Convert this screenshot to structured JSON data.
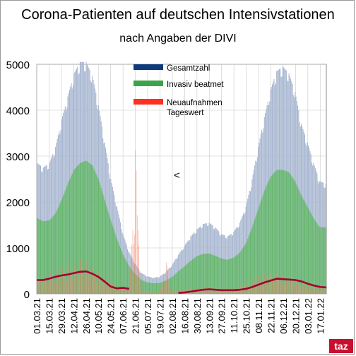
{
  "header": {
    "title": "Corona-Patienten auf deutschen Intensivstationen",
    "subtitle": "nach Angaben der DIVI"
  },
  "logo_text": "taz",
  "annotation_mark": "<",
  "colors": {
    "gesamt": "#a7b6d0",
    "invasiv": "#65b76c",
    "neu_bars": "#f07a58",
    "neu_avg": "#a3002f",
    "legend_gesamt": "#0f3a7a",
    "legend_invasiv": "#3da34a",
    "legend_neu": "#ff3020",
    "grid": "#c8c8c8",
    "logo": "#c8102e"
  },
  "chart_data": {
    "type": "bar",
    "title": "Corona-Patienten auf deutschen Intensivstationen",
    "subtitle": "nach Angaben der DIVI",
    "ylim": [
      0,
      5000
    ],
    "y_ticks": [
      0,
      1000,
      2000,
      3000,
      4000,
      5000
    ],
    "y_tick_labels": [
      "0",
      "1000",
      "2000",
      "3000",
      "4000",
      "5000"
    ],
    "grid": true,
    "legend_position": "top-center",
    "x_tick_labels": [
      "01.03.21",
      "15.03.21",
      "29.03.21",
      "12.04.21",
      "26.04.21",
      "10.05.21",
      "24.05.21",
      "07.06.21",
      "21.06.21",
      "05.07.21",
      "19.07.21",
      "02.08.21",
      "16.08.21",
      "30.08.21",
      "13.09.21",
      "27.09.21",
      "11.10.21",
      "25.10.21",
      "08.11.21",
      "22.11.21",
      "06.12.21",
      "20.12.21",
      "03.01.22",
      "17.01.22"
    ],
    "legend": [
      {
        "label": "Gesamtzahl",
        "color_key": "legend_gesamt"
      },
      {
        "label": "Invasiv beatmet",
        "color_key": "legend_invasiv"
      },
      {
        "label": "Neuaufnahmen\nTageswert",
        "color_key": "legend_neu"
      }
    ],
    "series": [
      {
        "name": "Gesamtzahl",
        "x": [
          "01.03.21",
          "08.03.21",
          "15.03.21",
          "22.03.21",
          "29.03.21",
          "05.04.21",
          "12.04.21",
          "19.04.21",
          "26.04.21",
          "03.05.21",
          "10.05.21",
          "17.05.21",
          "24.05.21",
          "31.05.21",
          "07.06.21",
          "14.06.21",
          "21.06.21",
          "28.06.21",
          "05.07.21",
          "12.07.21",
          "19.07.21",
          "26.07.21",
          "02.08.21",
          "09.08.21",
          "16.08.21",
          "23.08.21",
          "30.08.21",
          "06.09.21",
          "13.09.21",
          "20.09.21",
          "27.09.21",
          "04.10.21",
          "11.10.21",
          "18.10.21",
          "25.10.21",
          "01.11.21",
          "08.11.21",
          "15.11.21",
          "22.11.21",
          "29.11.21",
          "06.12.21",
          "13.12.21",
          "20.12.21",
          "27.12.21",
          "03.01.22",
          "10.01.22",
          "17.01.22",
          "24.01.22"
        ],
        "values": [
          2850,
          2750,
          2850,
          3200,
          3800,
          4300,
          4800,
          5050,
          5050,
          4750,
          4100,
          3300,
          2500,
          1900,
          1300,
          900,
          650,
          450,
          380,
          350,
          380,
          480,
          640,
          850,
          1050,
          1250,
          1400,
          1520,
          1550,
          1450,
          1300,
          1250,
          1350,
          1550,
          1900,
          2500,
          3200,
          3850,
          4450,
          4850,
          4950,
          4800,
          4400,
          3700,
          3300,
          2850,
          2450,
          2400
        ]
      },
      {
        "name": "Invasiv beatmet",
        "x": [
          "01.03.21",
          "08.03.21",
          "15.03.21",
          "22.03.21",
          "29.03.21",
          "05.04.21",
          "12.04.21",
          "19.04.21",
          "26.04.21",
          "03.05.21",
          "10.05.21",
          "17.05.21",
          "24.05.21",
          "31.05.21",
          "07.06.21",
          "14.06.21",
          "21.06.21",
          "28.06.21",
          "05.07.21",
          "12.07.21",
          "19.07.21",
          "26.07.21",
          "02.08.21",
          "09.08.21",
          "16.08.21",
          "23.08.21",
          "30.08.21",
          "06.09.21",
          "13.09.21",
          "20.09.21",
          "27.09.21",
          "04.10.21",
          "11.10.21",
          "18.10.21",
          "25.10.21",
          "01.11.21",
          "08.11.21",
          "15.11.21",
          "22.11.21",
          "29.11.21",
          "06.12.21",
          "13.12.21",
          "20.12.21",
          "27.12.21",
          "03.01.22",
          "10.01.22",
          "17.01.22",
          "24.01.22"
        ],
        "values": [
          1650,
          1580,
          1600,
          1750,
          2050,
          2400,
          2700,
          2850,
          2900,
          2800,
          2500,
          2050,
          1600,
          1200,
          850,
          600,
          430,
          300,
          250,
          230,
          240,
          290,
          370,
          490,
          600,
          720,
          820,
          870,
          880,
          830,
          770,
          740,
          790,
          900,
          1100,
          1450,
          1850,
          2250,
          2550,
          2700,
          2700,
          2650,
          2450,
          2150,
          1900,
          1650,
          1450,
          1450
        ]
      },
      {
        "name": "Neuaufnahmen Tageswert",
        "x": [
          "01.03.21",
          "08.03.21",
          "15.03.21",
          "22.03.21",
          "29.03.21",
          "05.04.21",
          "12.04.21",
          "19.04.21",
          "26.04.21",
          "03.05.21",
          "10.05.21",
          "17.05.21",
          "24.05.21",
          "31.05.21",
          "07.06.21",
          "14.06.21",
          "21.06.21",
          "28.06.21",
          "05.07.21",
          "12.07.21",
          "19.07.21",
          "26.07.21",
          "02.08.21",
          "09.08.21",
          "16.08.21",
          "23.08.21",
          "30.08.21",
          "06.09.21",
          "13.09.21",
          "20.09.21",
          "27.09.21",
          "04.10.21",
          "11.10.21",
          "18.10.21",
          "25.10.21",
          "01.11.21",
          "08.11.21",
          "15.11.21",
          "22.11.21",
          "29.11.21",
          "06.12.21",
          "13.12.21",
          "20.12.21",
          "27.12.21",
          "03.01.22",
          "10.01.22",
          "17.01.22",
          "24.01.22"
        ],
        "values": [
          330,
          300,
          360,
          420,
          460,
          470,
          520,
          600,
          560,
          470,
          400,
          300,
          230,
          160,
          120,
          90,
          2500,
          60,
          40,
          40,
          40,
          550,
          60,
          80,
          90,
          110,
          120,
          130,
          130,
          110,
          90,
          90,
          110,
          140,
          180,
          250,
          320,
          360,
          380,
          350,
          320,
          300,
          280,
          230,
          200,
          180,
          160,
          150
        ]
      },
      {
        "name": "Neuaufnahmen gleitender Durchschnitt",
        "x": [
          "01.03.21",
          "08.03.21",
          "15.03.21",
          "22.03.21",
          "29.03.21",
          "05.04.21",
          "12.04.21",
          "19.04.21",
          "26.04.21",
          "03.05.21",
          "10.05.21",
          "17.05.21",
          "24.05.21",
          "31.05.21",
          "07.06.21",
          "14.06.21",
          "09.08.21",
          "16.08.21",
          "23.08.21",
          "30.08.21",
          "06.09.21",
          "13.09.21",
          "20.09.21",
          "27.09.21",
          "04.10.21",
          "11.10.21",
          "18.10.21",
          "25.10.21",
          "01.11.21",
          "08.11.21",
          "15.11.21",
          "22.11.21",
          "29.11.21",
          "06.12.21",
          "13.12.21",
          "20.12.21",
          "27.12.21",
          "03.01.22",
          "10.01.22",
          "17.01.22",
          "24.01.22"
        ],
        "values": [
          300,
          300,
          330,
          370,
          400,
          420,
          450,
          480,
          490,
          440,
          370,
          270,
          160,
          120,
          130,
          110,
          20,
          30,
          50,
          70,
          90,
          100,
          90,
          80,
          80,
          80,
          90,
          110,
          150,
          200,
          250,
          290,
          330,
          320,
          310,
          300,
          270,
          220,
          180,
          150,
          140
        ]
      }
    ]
  }
}
